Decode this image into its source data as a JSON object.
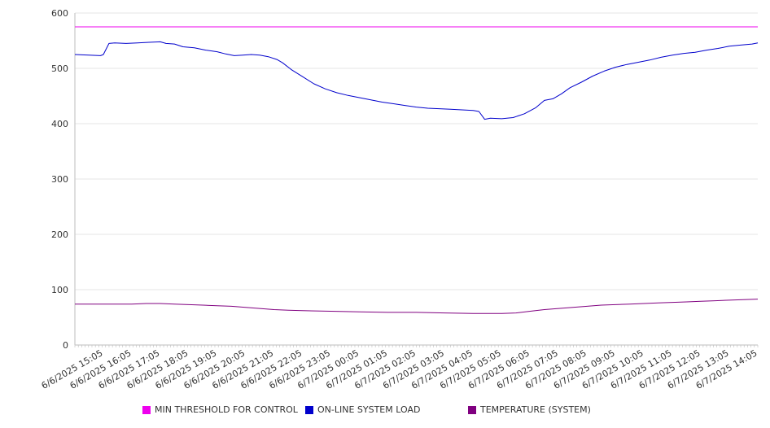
{
  "chart_data": {
    "type": "line",
    "ylim": [
      0,
      600
    ],
    "yticks": [
      0,
      100,
      200,
      300,
      400,
      500,
      600
    ],
    "xlabels": [
      "6/6/2025 15:05",
      "6/6/2025 16:05",
      "6/6/2025 17:05",
      "6/6/2025 18:05",
      "6/6/2025 19:05",
      "6/6/2025 20:05",
      "6/6/2025 21:05",
      "6/6/2025 22:05",
      "6/6/2025 23:05",
      "6/7/2025 00:05",
      "6/7/2025 01:05",
      "6/7/2025 02:05",
      "6/7/2025 03:05",
      "6/7/2025 04:05",
      "6/7/2025 05:05",
      "6/7/2025 06:05",
      "6/7/2025 07:05",
      "6/7/2025 08:05",
      "6/7/2025 09:05",
      "6/7/2025 10:05",
      "6/7/2025 11:05",
      "6/7/2025 12:05",
      "6/7/2025 13:05",
      "6/7/2025 14:05"
    ],
    "grid": true,
    "legend_position": "bottom",
    "series": [
      {
        "name": "MIN THRESHOLD FOR CONTROL",
        "color": "#ee00ee",
        "points": [
          [
            0,
            575
          ],
          [
            24,
            575
          ]
        ]
      },
      {
        "name": "ON-LINE SYSTEM LOAD",
        "color": "#0000cc",
        "points": [
          [
            0,
            525
          ],
          [
            0.5,
            524
          ],
          [
            0.9,
            523
          ],
          [
            1.0,
            525
          ],
          [
            1.2,
            545
          ],
          [
            1.4,
            546
          ],
          [
            1.8,
            545
          ],
          [
            2.2,
            546
          ],
          [
            2.6,
            547
          ],
          [
            3.0,
            548
          ],
          [
            3.2,
            545
          ],
          [
            3.5,
            544
          ],
          [
            3.8,
            539
          ],
          [
            4.2,
            537
          ],
          [
            4.6,
            533
          ],
          [
            5.0,
            530
          ],
          [
            5.3,
            526
          ],
          [
            5.6,
            523
          ],
          [
            5.9,
            524
          ],
          [
            6.2,
            525
          ],
          [
            6.5,
            524
          ],
          [
            6.8,
            521
          ],
          [
            7.1,
            516
          ],
          [
            7.3,
            510
          ],
          [
            7.6,
            498
          ],
          [
            8.0,
            485
          ],
          [
            8.4,
            472
          ],
          [
            8.8,
            463
          ],
          [
            9.2,
            456
          ],
          [
            9.6,
            451
          ],
          [
            10.0,
            447
          ],
          [
            10.4,
            443
          ],
          [
            10.8,
            439
          ],
          [
            11.2,
            436
          ],
          [
            11.6,
            433
          ],
          [
            12.0,
            430
          ],
          [
            12.4,
            428
          ],
          [
            12.8,
            427
          ],
          [
            13.2,
            426
          ],
          [
            13.6,
            425
          ],
          [
            14.0,
            424
          ],
          [
            14.2,
            422
          ],
          [
            14.4,
            408
          ],
          [
            14.6,
            410
          ],
          [
            15.0,
            409
          ],
          [
            15.4,
            411
          ],
          [
            15.8,
            418
          ],
          [
            16.2,
            429
          ],
          [
            16.5,
            442
          ],
          [
            16.8,
            445
          ],
          [
            17.1,
            454
          ],
          [
            17.4,
            465
          ],
          [
            17.8,
            475
          ],
          [
            18.2,
            486
          ],
          [
            18.6,
            495
          ],
          [
            19.0,
            502
          ],
          [
            19.4,
            507
          ],
          [
            19.8,
            511
          ],
          [
            20.2,
            515
          ],
          [
            20.6,
            520
          ],
          [
            21.0,
            524
          ],
          [
            21.4,
            527
          ],
          [
            21.8,
            529
          ],
          [
            22.2,
            533
          ],
          [
            22.6,
            536
          ],
          [
            23.0,
            540
          ],
          [
            23.4,
            542
          ],
          [
            23.8,
            544
          ],
          [
            24.0,
            546
          ]
        ]
      },
      {
        "name": "TEMPERATURE (SYSTEM)",
        "color": "#800080",
        "points": [
          [
            0,
            74
          ],
          [
            1.0,
            74
          ],
          [
            2.0,
            74
          ],
          [
            2.5,
            75
          ],
          [
            3.0,
            75
          ],
          [
            3.5,
            74
          ],
          [
            4.0,
            73
          ],
          [
            4.5,
            72
          ],
          [
            5.0,
            71
          ],
          [
            5.5,
            70
          ],
          [
            6.0,
            68
          ],
          [
            6.5,
            66
          ],
          [
            7.0,
            64
          ],
          [
            7.5,
            63
          ],
          [
            8.0,
            62
          ],
          [
            9.0,
            61
          ],
          [
            10.0,
            60
          ],
          [
            11.0,
            59
          ],
          [
            12.0,
            59
          ],
          [
            13.0,
            58
          ],
          [
            14.0,
            57
          ],
          [
            15.0,
            57
          ],
          [
            15.5,
            58
          ],
          [
            16.0,
            61
          ],
          [
            16.5,
            64
          ],
          [
            17.0,
            66
          ],
          [
            17.5,
            68
          ],
          [
            18.0,
            70
          ],
          [
            18.5,
            72
          ],
          [
            19.0,
            73
          ],
          [
            19.5,
            74
          ],
          [
            20.0,
            75
          ],
          [
            20.5,
            76
          ],
          [
            21.0,
            77
          ],
          [
            21.5,
            78
          ],
          [
            22.0,
            79
          ],
          [
            22.5,
            80
          ],
          [
            23.0,
            81
          ],
          [
            23.5,
            82
          ],
          [
            24.0,
            83
          ]
        ]
      }
    ]
  }
}
